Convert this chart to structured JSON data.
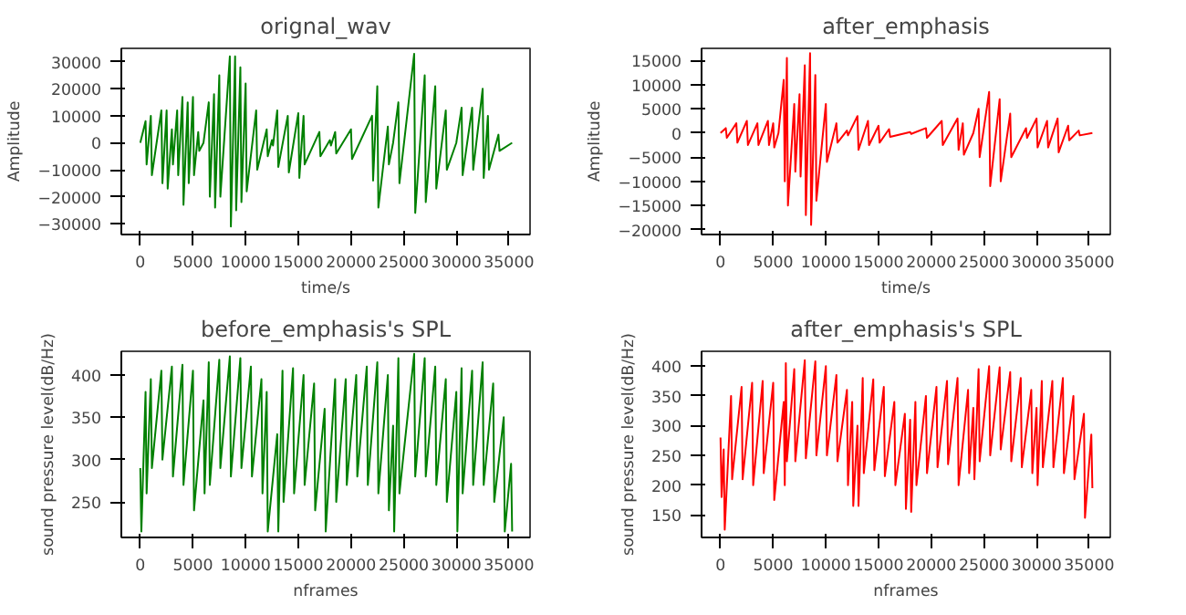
{
  "chart_data": [
    {
      "type": "line",
      "title": "orignal_wav",
      "xlabel": "time/s",
      "ylabel": "Amplitude",
      "xlim": [
        -1800,
        37000
      ],
      "ylim": [
        -34000,
        35000
      ],
      "xticks": [
        0,
        5000,
        10000,
        15000,
        20000,
        25000,
        30000,
        35000
      ],
      "yticks": [
        -30000,
        -20000,
        -10000,
        0,
        10000,
        20000,
        30000
      ],
      "series": [
        {
          "color": "#008000",
          "x": [
            0,
            500,
            600,
            1000,
            1100,
            2000,
            2100,
            2500,
            2600,
            3000,
            3100,
            3500,
            3600,
            4000,
            4100,
            4500,
            4600,
            5000,
            5100,
            5500,
            5600,
            6000,
            6500,
            6600,
            7000,
            7100,
            7500,
            7600,
            8500,
            8600,
            9000,
            9100,
            9500,
            9600,
            10000,
            10100,
            11000,
            11100,
            12000,
            12100,
            12500,
            12600,
            13000,
            13100,
            14000,
            14100,
            15000,
            15100,
            15500,
            15600,
            17000,
            17100,
            18000,
            18100,
            18500,
            18600,
            20000,
            20100,
            22000,
            22100,
            22500,
            22600,
            23500,
            23600,
            24000,
            24500,
            24600,
            26000,
            26100,
            27000,
            27100,
            28000,
            28100,
            29000,
            29100,
            30000,
            30500,
            30600,
            31500,
            31600,
            32500,
            32600,
            33000,
            33100,
            34000,
            34100,
            35300
          ],
          "values": [
            0,
            8000,
            -8000,
            10000,
            -12000,
            12000,
            -15000,
            12000,
            -17000,
            5000,
            -8000,
            12000,
            -12000,
            17000,
            -23000,
            15000,
            -15000,
            17000,
            -12000,
            4000,
            -3000,
            0,
            15000,
            -20000,
            18000,
            -24000,
            25000,
            -20000,
            32000,
            -31000,
            32000,
            -25000,
            28000,
            -22000,
            22000,
            -18000,
            12000,
            -10000,
            5000,
            -5000,
            1000,
            -1000,
            12000,
            -9000,
            10000,
            -11000,
            11000,
            -13000,
            10000,
            -8000,
            4000,
            -5000,
            1000,
            -1000,
            4000,
            -4000,
            5000,
            -6000,
            10000,
            -14000,
            21000,
            -24000,
            6000,
            -8000,
            0,
            15000,
            -15000,
            33000,
            -26000,
            25000,
            -22000,
            21000,
            -17000,
            12000,
            -10000,
            0,
            13000,
            -12000,
            13000,
            -10000,
            20000,
            -13000,
            10000,
            -10000,
            3000,
            -3000,
            0
          ]
        }
      ]
    },
    {
      "type": "line",
      "title": "after_emphasis",
      "xlabel": "time/s",
      "ylabel": "Amplitude",
      "xlim": [
        -1800,
        37000
      ],
      "ylim": [
        -21000,
        17500
      ],
      "xticks": [
        0,
        5000,
        10000,
        15000,
        20000,
        25000,
        30000,
        35000
      ],
      "yticks": [
        -20000,
        -15000,
        -10000,
        -5000,
        0,
        5000,
        10000,
        15000
      ],
      "series": [
        {
          "color": "#ff0000",
          "x": [
            0,
            500,
            600,
            1500,
            1600,
            2500,
            2600,
            3500,
            3600,
            4500,
            4600,
            5000,
            5100,
            5500,
            6000,
            6100,
            6300,
            6400,
            7000,
            7100,
            7500,
            7600,
            8000,
            8100,
            8500,
            8600,
            9000,
            9100,
            10000,
            10100,
            11000,
            11100,
            12000,
            12100,
            13000,
            13100,
            14000,
            14100,
            15000,
            15100,
            16000,
            16100,
            18000,
            18100,
            19500,
            19600,
            21000,
            21100,
            22500,
            22600,
            23000,
            23100,
            24000,
            24500,
            24600,
            25500,
            25600,
            26500,
            26600,
            27500,
            27600,
            29000,
            29100,
            30000,
            30100,
            31000,
            31100,
            32000,
            32100,
            33000,
            33100,
            34000,
            34100,
            35300
          ],
          "values": [
            0,
            1000,
            -1000,
            2000,
            -2000,
            2500,
            -2500,
            2000,
            -2500,
            2500,
            -2500,
            2000,
            -3000,
            0,
            11000,
            -10000,
            15500,
            -15000,
            6000,
            -8000,
            8000,
            -9000,
            14000,
            -17000,
            16500,
            -19000,
            12000,
            -14000,
            6000,
            -6000,
            2000,
            -2000,
            500,
            -500,
            3500,
            -3500,
            2500,
            -2500,
            1500,
            -2000,
            800,
            -800,
            200,
            -200,
            1000,
            -1000,
            2500,
            -2500,
            3000,
            -3500,
            2000,
            -4500,
            0,
            5000,
            -5000,
            8500,
            -11000,
            7000,
            -10000,
            4000,
            -5000,
            1000,
            -1000,
            3000,
            -3000,
            2500,
            -3000,
            3000,
            -4000,
            1500,
            -1500,
            500,
            -500,
            0
          ]
        }
      ]
    },
    {
      "type": "line",
      "title": "before_emphasis's SPL",
      "xlabel": "nframes",
      "ylabel": "sound pressure level(dB/Hz)",
      "xlim": [
        -1800,
        37000
      ],
      "ylim": [
        208,
        428
      ],
      "xticks": [
        0,
        5000,
        10000,
        15000,
        20000,
        25000,
        30000,
        35000
      ],
      "yticks": [
        250,
        300,
        350,
        400
      ],
      "series": [
        {
          "color": "#008000",
          "x": [
            0,
            100,
            500,
            600,
            1000,
            1100,
            2000,
            2100,
            3000,
            3100,
            4000,
            4100,
            5000,
            5100,
            6000,
            6100,
            6500,
            6600,
            7500,
            7600,
            8500,
            8600,
            9500,
            9600,
            10500,
            10600,
            11500,
            11600,
            12000,
            12100,
            13000,
            13100,
            13500,
            13600,
            14500,
            14600,
            15500,
            15600,
            16500,
            16600,
            17500,
            17600,
            18500,
            18600,
            19500,
            19600,
            20500,
            20600,
            21500,
            21600,
            22500,
            22600,
            23500,
            23600,
            24000,
            24100,
            24500,
            24600,
            26000,
            26100,
            27000,
            27100,
            28000,
            28100,
            29000,
            29100,
            30000,
            30100,
            30500,
            30600,
            31500,
            31600,
            32500,
            32600,
            33500,
            33600,
            34500,
            34600,
            35200,
            35300
          ],
          "values": [
            290,
            215,
            380,
            260,
            395,
            290,
            405,
            300,
            410,
            280,
            412,
            270,
            405,
            240,
            370,
            260,
            415,
            270,
            418,
            290,
            422,
            280,
            420,
            290,
            410,
            280,
            395,
            260,
            380,
            215,
            330,
            215,
            405,
            250,
            408,
            260,
            400,
            270,
            390,
            240,
            360,
            215,
            395,
            250,
            395,
            270,
            400,
            280,
            410,
            270,
            415,
            260,
            400,
            240,
            340,
            215,
            420,
            260,
            425,
            280,
            420,
            280,
            410,
            270,
            395,
            250,
            380,
            215,
            408,
            260,
            405,
            270,
            415,
            270,
            390,
            250,
            350,
            215,
            295,
            215
          ]
        }
      ]
    },
    {
      "type": "line",
      "title": "after_emphasis's SPL",
      "xlabel": "nframes",
      "ylabel": "sound pressure level(dB/Hz)",
      "xlim": [
        -1800,
        37000
      ],
      "ylim": [
        112,
        425
      ],
      "xticks": [
        0,
        5000,
        10000,
        15000,
        20000,
        25000,
        30000,
        35000
      ],
      "yticks": [
        150,
        200,
        250,
        300,
        350,
        400
      ],
      "series": [
        {
          "color": "#ff0000",
          "x": [
            0,
            100,
            300,
            400,
            1000,
            1100,
            2000,
            2100,
            3000,
            3100,
            4000,
            4100,
            5000,
            5100,
            6000,
            6100,
            6200,
            6300,
            7000,
            7100,
            8000,
            8100,
            9000,
            9100,
            10000,
            10100,
            11000,
            11100,
            12000,
            12100,
            12500,
            12600,
            13000,
            13100,
            13500,
            13600,
            14500,
            14600,
            15500,
            15600,
            16500,
            16600,
            17500,
            17600,
            18000,
            18100,
            18500,
            18600,
            19500,
            19600,
            20500,
            20600,
            21500,
            21600,
            22500,
            22600,
            23500,
            23600,
            24000,
            24100,
            24500,
            24600,
            25500,
            25600,
            26500,
            26600,
            27500,
            27600,
            28500,
            28600,
            29500,
            29600,
            30000,
            30100,
            30500,
            30600,
            31500,
            31600,
            32500,
            32600,
            33500,
            33600,
            34500,
            34600,
            35200,
            35300
          ],
          "values": [
            280,
            180,
            260,
            125,
            350,
            210,
            365,
            210,
            372,
            200,
            375,
            220,
            372,
            175,
            340,
            200,
            405,
            240,
            395,
            240,
            410,
            245,
            408,
            250,
            400,
            250,
            385,
            240,
            360,
            200,
            340,
            165,
            300,
            165,
            380,
            220,
            378,
            225,
            365,
            215,
            340,
            200,
            320,
            160,
            310,
            155,
            340,
            200,
            350,
            220,
            365,
            230,
            375,
            235,
            380,
            200,
            360,
            220,
            330,
            210,
            395,
            240,
            400,
            250,
            398,
            260,
            390,
            240,
            380,
            230,
            360,
            220,
            330,
            200,
            375,
            230,
            375,
            230,
            380,
            220,
            350,
            210,
            320,
            145,
            285,
            195
          ]
        }
      ]
    }
  ]
}
